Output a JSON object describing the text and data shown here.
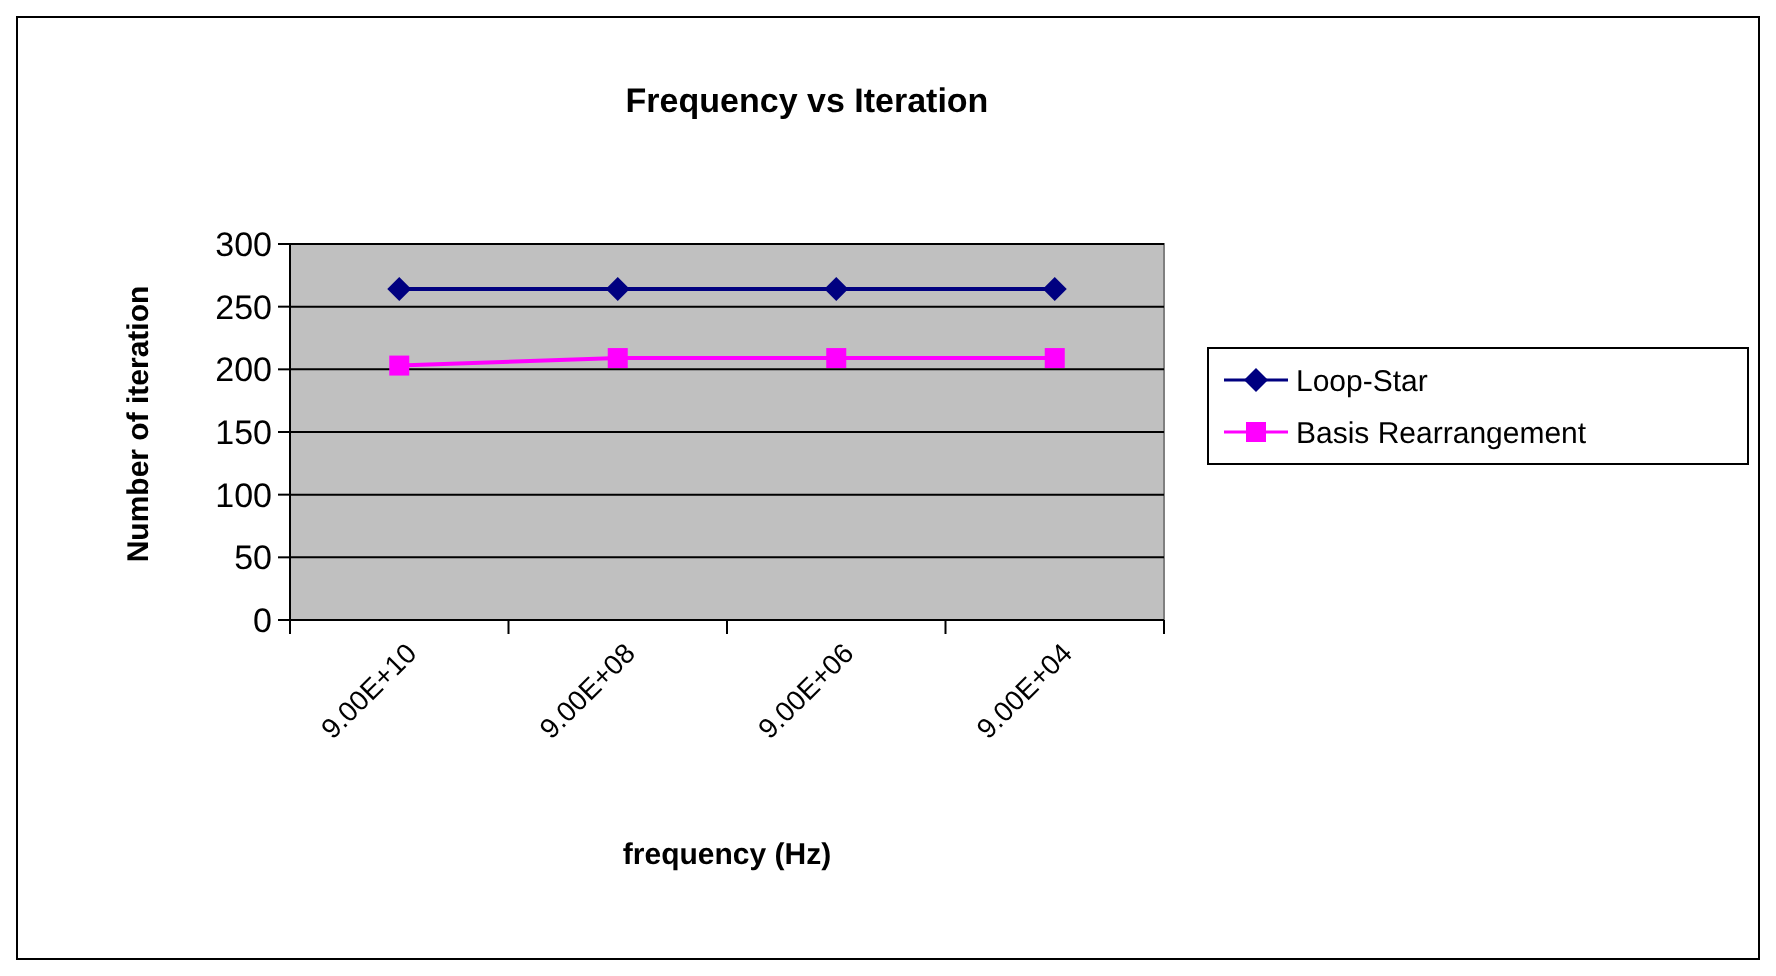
{
  "chart_data": {
    "type": "line",
    "title": "Frequency vs Iteration",
    "xlabel": "frequency (Hz)",
    "ylabel": "Number of iteration",
    "categories": [
      "9.00E+10",
      "9.00E+08",
      "9.00E+06",
      "9.00E+04"
    ],
    "series": [
      {
        "name": "Loop-Star",
        "color": "#000080",
        "marker": "diamond",
        "values": [
          264,
          264,
          264,
          264
        ]
      },
      {
        "name": "Basis Rearrangement",
        "color": "#ff00ff",
        "marker": "square",
        "values": [
          203,
          209,
          209,
          209
        ]
      }
    ],
    "ylim": [
      0,
      300
    ],
    "yticks": [
      0,
      50,
      100,
      150,
      200,
      250,
      300
    ],
    "grid": "y",
    "legend": "right"
  }
}
